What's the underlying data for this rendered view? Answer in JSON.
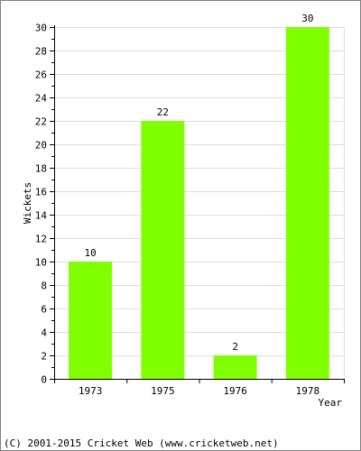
{
  "chart_data": {
    "type": "bar",
    "categories": [
      "1973",
      "1975",
      "1976",
      "1978"
    ],
    "values": [
      10,
      22,
      2,
      30
    ],
    "data_labels": [
      "10",
      "22",
      "2",
      "30"
    ],
    "title": "",
    "xlabel": "Year",
    "ylabel": "Wickets",
    "ylim": [
      0,
      30
    ],
    "y_major_step": 2,
    "y_minor_step": 1,
    "grid": true,
    "bar_color": "#80ff00",
    "grid_color": "#dddddd",
    "axis_color": "#000000"
  },
  "footer": {
    "copyright": "(C) 2001-2015 Cricket Web (www.cricketweb.net)"
  }
}
